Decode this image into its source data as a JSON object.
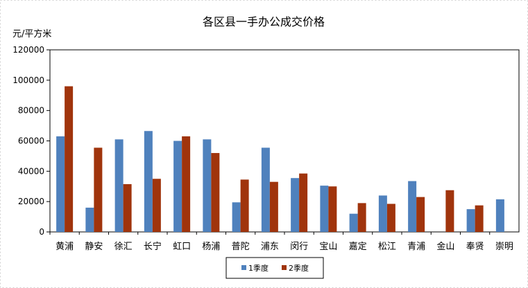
{
  "chart_data": {
    "type": "bar",
    "title": "各区县一手办公成交价格",
    "ylabel": "元/平方米",
    "xlabel": "",
    "ylim": [
      0,
      120000
    ],
    "yticks": [
      0,
      20000,
      40000,
      60000,
      80000,
      100000,
      120000
    ],
    "grid": false,
    "legend_position": "bottom",
    "categories": [
      "黄浦",
      "静安",
      "徐汇",
      "长宁",
      "虹口",
      "杨浦",
      "普陀",
      "浦东",
      "闵行",
      "宝山",
      "嘉定",
      "松江",
      "青浦",
      "金山",
      "奉贤",
      "崇明"
    ],
    "series": [
      {
        "name": "1季度",
        "color": "#4f81bd",
        "values": [
          63000,
          16000,
          61000,
          66500,
          60000,
          61000,
          19500,
          55500,
          35500,
          30500,
          12000,
          24000,
          33500,
          null,
          15000,
          21500
        ]
      },
      {
        "name": "2季度",
        "color": "#a0340c",
        "values": [
          96000,
          55500,
          31500,
          35000,
          63000,
          52000,
          34500,
          33000,
          38500,
          30000,
          19000,
          18500,
          23000,
          27500,
          17500,
          null
        ]
      }
    ]
  }
}
